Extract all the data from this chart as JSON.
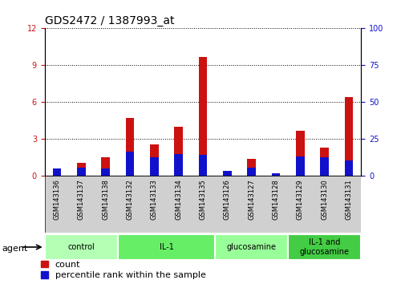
{
  "title": "GDS2472 / 1387993_at",
  "samples": [
    "GSM143136",
    "GSM143137",
    "GSM143138",
    "GSM143132",
    "GSM143133",
    "GSM143134",
    "GSM143135",
    "GSM143126",
    "GSM143127",
    "GSM143128",
    "GSM143129",
    "GSM143130",
    "GSM143131"
  ],
  "count_values": [
    0.05,
    1.1,
    1.5,
    4.7,
    2.6,
    4.0,
    9.7,
    0.05,
    1.4,
    0.05,
    3.7,
    2.3,
    6.4
  ],
  "percentile_values": [
    0.6,
    0.7,
    0.6,
    2.0,
    1.5,
    1.8,
    1.7,
    0.4,
    0.7,
    0.25,
    1.6,
    1.5,
    1.3
  ],
  "groups": [
    {
      "label": "control",
      "indices": [
        0,
        1,
        2
      ],
      "color": "#b3ffb3"
    },
    {
      "label": "IL-1",
      "indices": [
        3,
        4,
        5,
        6
      ],
      "color": "#66ee66"
    },
    {
      "label": "glucosamine",
      "indices": [
        7,
        8,
        9
      ],
      "color": "#99ff99"
    },
    {
      "label": "IL-1 and\nglucosamine",
      "indices": [
        10,
        11,
        12
      ],
      "color": "#44cc44"
    }
  ],
  "ylim_left": [
    0,
    12
  ],
  "yticks_left": [
    0,
    3,
    6,
    9,
    12
  ],
  "ylim_right": [
    0,
    100
  ],
  "yticks_right": [
    0,
    25,
    50,
    75,
    100
  ],
  "bar_width": 0.35,
  "count_color": "#cc1111",
  "percentile_color": "#1111cc",
  "title_fontsize": 10,
  "tick_fontsize": 7,
  "legend_fontsize": 8,
  "agent_label": "agent",
  "legend_items": [
    "count",
    "percentile rank within the sample"
  ]
}
